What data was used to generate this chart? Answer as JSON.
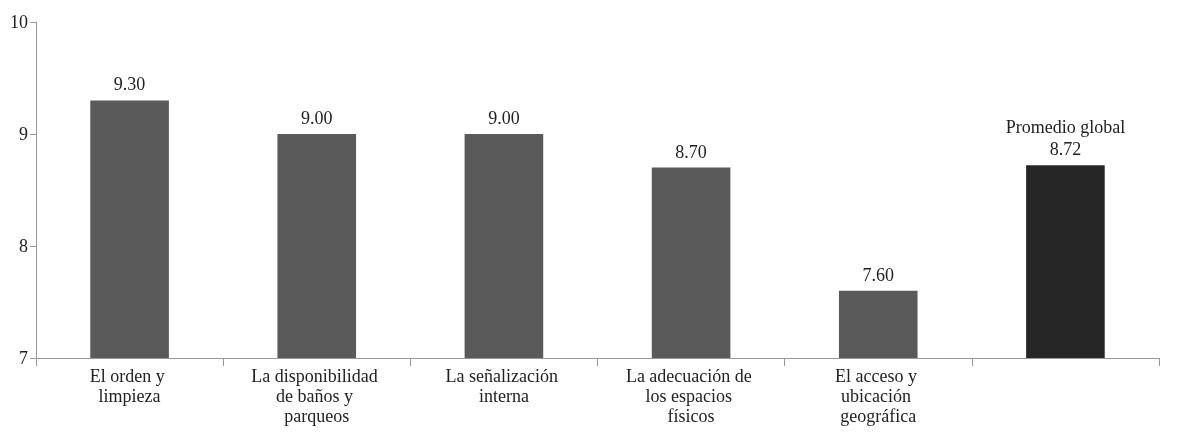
{
  "chart_data": {
    "type": "bar",
    "categories": [
      "El orden y limpieza",
      "La disponibilidad de baños y parqueos",
      "La señalización interna",
      "La adecuación de los espacios físicos",
      "El acceso y ubicación geográfica",
      null
    ],
    "values": [
      9.3,
      9.0,
      9.0,
      8.7,
      7.6,
      8.72
    ],
    "value_labels": [
      "9.30",
      "9.00",
      "9.00",
      "8.70",
      "7.60",
      "8.72"
    ],
    "colors": [
      "#5a5a5a",
      "#5a5a5a",
      "#5a5a5a",
      "#5a5a5a",
      "#5a5a5a",
      "#262626"
    ],
    "annotations": [
      "Promedio global"
    ],
    "ylim": [
      7,
      10
    ],
    "yticks": [
      7,
      8,
      9,
      10
    ],
    "grid": false
  }
}
